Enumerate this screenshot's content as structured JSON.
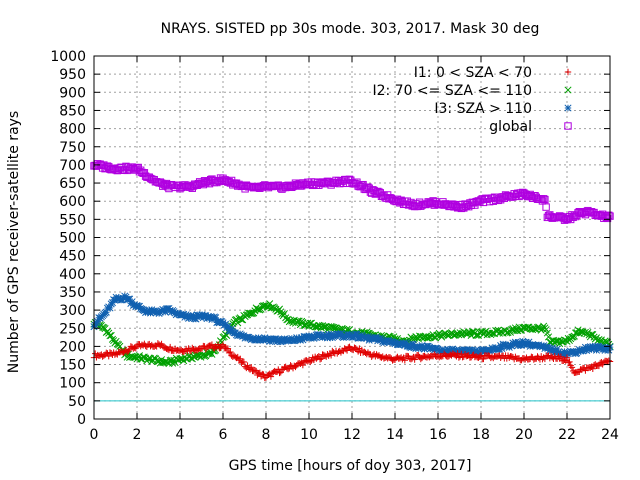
{
  "chart_data": {
    "type": "scatter",
    "title": "NRAYS. SISTED pp 30s mode. 303, 2017. Mask 30 deg",
    "xlabel": "GPS time [hours of doy 303, 2017]",
    "ylabel": "Number of GPS receiver-satellite rays",
    "xlim": [
      0,
      24
    ],
    "ylim": [
      0,
      1000
    ],
    "xticks": [
      "0",
      "2",
      "4",
      "6",
      "8",
      "10",
      "12",
      "14",
      "16",
      "18",
      "20",
      "22",
      "24"
    ],
    "yticks": [
      "0",
      "50",
      "100",
      "150",
      "200",
      "250",
      "300",
      "350",
      "400",
      "450",
      "500",
      "550",
      "600",
      "650",
      "700",
      "750",
      "800",
      "850",
      "900",
      "950",
      "1000"
    ],
    "grid": true,
    "legend_position": "top-right",
    "reference_line": {
      "y": 50,
      "color": "#22c3c9"
    },
    "series": [
      {
        "name": "I1: 0 < SZA < 70",
        "marker": "+",
        "color": "#e00000",
        "x": [
          0,
          1,
          1.5,
          2,
          3,
          3.5,
          4,
          5,
          5.5,
          6,
          6.5,
          7,
          7.5,
          8,
          8.5,
          9,
          10,
          11,
          12,
          12.5,
          13,
          13.5,
          14,
          15,
          16,
          17,
          18,
          19,
          20,
          21,
          22,
          22.3,
          23,
          24
        ],
        "y": [
          175,
          178,
          190,
          200,
          205,
          195,
          190,
          195,
          200,
          200,
          175,
          150,
          130,
          115,
          130,
          140,
          160,
          180,
          195,
          185,
          175,
          170,
          165,
          170,
          175,
          175,
          170,
          170,
          165,
          170,
          165,
          130,
          140,
          160
        ]
      },
      {
        "name": "I2: 70 <= SZA <= 110",
        "marker": "x",
        "color": "#00a000",
        "x": [
          0,
          0.5,
          1,
          1.5,
          2,
          3,
          3.5,
          4,
          4.5,
          5,
          5.5,
          6,
          6.5,
          7,
          7.5,
          8,
          8.3,
          8.7,
          9,
          9.5,
          10,
          11,
          12,
          13,
          14,
          14.5,
          15,
          16,
          17,
          18,
          19,
          20,
          21,
          21.2,
          22,
          22.5,
          23,
          23.5,
          24
        ],
        "y": [
          265,
          250,
          210,
          175,
          170,
          160,
          155,
          165,
          170,
          175,
          180,
          220,
          265,
          280,
          300,
          315,
          310,
          295,
          275,
          265,
          260,
          250,
          240,
          230,
          220,
          215,
          225,
          230,
          235,
          235,
          240,
          250,
          250,
          210,
          215,
          240,
          235,
          215,
          205
        ]
      },
      {
        "name": "I3: SZA > 110",
        "marker": "*",
        "color": "#1060b0",
        "x": [
          0,
          0.5,
          1,
          1.5,
          2,
          2.5,
          3,
          3.5,
          4,
          4.5,
          5,
          5.5,
          6,
          6.5,
          7,
          8,
          9,
          10,
          11,
          12,
          13,
          14,
          15,
          16,
          17,
          18,
          19,
          20,
          21,
          22,
          23,
          24
        ],
        "y": [
          260,
          290,
          330,
          335,
          310,
          295,
          295,
          300,
          285,
          280,
          282,
          280,
          260,
          240,
          225,
          220,
          215,
          225,
          230,
          230,
          220,
          210,
          200,
          190,
          185,
          185,
          200,
          210,
          195,
          180,
          195,
          195
        ]
      },
      {
        "name": "global",
        "marker": "square",
        "color": "#b000e0",
        "x": [
          0,
          0.5,
          1,
          1.5,
          2,
          2.5,
          3,
          3.5,
          4,
          4.5,
          5,
          5.5,
          6,
          6.5,
          7,
          7.5,
          8,
          8.5,
          9,
          9.5,
          10,
          10.5,
          11,
          11.5,
          12,
          12.5,
          13,
          13.5,
          14,
          14.5,
          15,
          15.5,
          16,
          16.5,
          17,
          17.5,
          18,
          18.5,
          19,
          19.5,
          20,
          20.5,
          21,
          21.05,
          22,
          22.5,
          23,
          23.5,
          24
        ],
        "y": [
          700,
          695,
          690,
          690,
          690,
          670,
          650,
          640,
          640,
          640,
          650,
          655,
          660,
          650,
          640,
          635,
          640,
          638,
          640,
          645,
          648,
          650,
          650,
          655,
          655,
          640,
          625,
          615,
          605,
          595,
          590,
          595,
          595,
          590,
          585,
          590,
          600,
          605,
          610,
          615,
          620,
          610,
          605,
          560,
          550,
          565,
          570,
          560,
          555
        ]
      }
    ]
  }
}
